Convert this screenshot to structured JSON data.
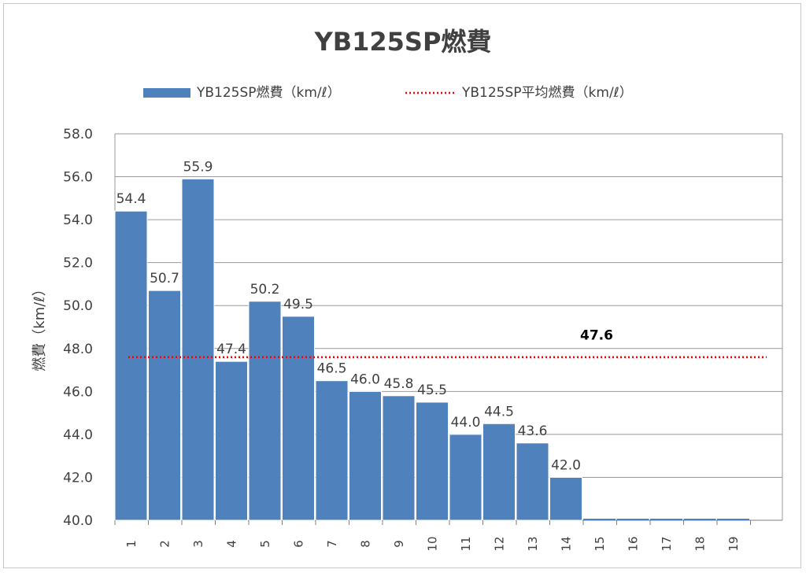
{
  "chart_data": {
    "type": "bar",
    "title": "YB125SP燃費",
    "ylabel": "燃費（km/ℓ）",
    "xlabel": "",
    "ylim": [
      40,
      58
    ],
    "ytick_step": 2,
    "grid": true,
    "legend_position": "top",
    "categories": [
      "1",
      "2",
      "3",
      "4",
      "5",
      "6",
      "7",
      "8",
      "9",
      "10",
      "11",
      "12",
      "13",
      "14",
      "15",
      "16",
      "17",
      "18",
      "19"
    ],
    "series": [
      {
        "name": "YB125SP燃費（km/ℓ）",
        "type": "bar",
        "color": "#4f81bd",
        "values": [
          54.4,
          50.7,
          55.9,
          47.4,
          50.2,
          49.5,
          46.5,
          46.0,
          45.8,
          45.5,
          44.0,
          44.5,
          43.6,
          42.0,
          null,
          null,
          null,
          null,
          null
        ],
        "labels": [
          "54.4",
          "50.7",
          "55.9",
          "47.4",
          "50.2",
          "49.5",
          "46.5",
          "46.0",
          "45.8",
          "45.5",
          "44.0",
          "44.5",
          "43.6",
          "42.0",
          "",
          "",
          "",
          "",
          ""
        ]
      },
      {
        "name": "YB125SP平均燃費（km/ℓ）",
        "type": "line",
        "style": "dotted",
        "color": "#ff0000",
        "value": 47.6,
        "label": "47.6"
      }
    ]
  }
}
